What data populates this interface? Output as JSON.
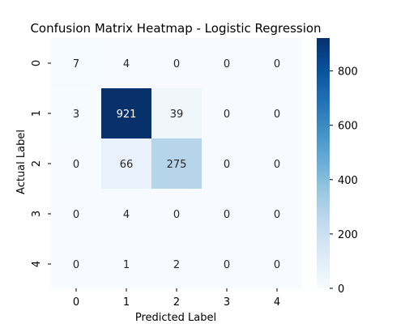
{
  "chart_data": {
    "type": "heatmap",
    "title": "Confusion Matrix Heatmap - Logistic Regression",
    "xlabel": "Predicted Label",
    "ylabel": "Actual Label",
    "x_categories": [
      "0",
      "1",
      "2",
      "3",
      "4"
    ],
    "y_categories": [
      "0",
      "1",
      "2",
      "3",
      "4"
    ],
    "values": [
      [
        7,
        4,
        0,
        0,
        0
      ],
      [
        3,
        921,
        39,
        0,
        0
      ],
      [
        0,
        66,
        275,
        0,
        0
      ],
      [
        0,
        4,
        0,
        0,
        0
      ],
      [
        0,
        1,
        2,
        0,
        0
      ]
    ],
    "colormap": "Blues",
    "colorbar": {
      "range": [
        0,
        921
      ],
      "ticks": [
        0,
        200,
        400,
        600,
        800
      ],
      "tick_labels": [
        "0",
        "200",
        "400",
        "600",
        "800"
      ]
    },
    "annot_light_color": "#262626",
    "annot_dark_color": "#ffffff"
  }
}
